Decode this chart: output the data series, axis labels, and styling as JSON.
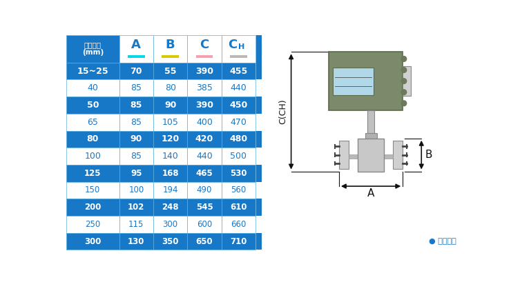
{
  "header_row_0": "仪表口径\n(mm)",
  "header_labels": [
    "A",
    "B",
    "C",
    "CH"
  ],
  "underline_colors": [
    "#00d8e8",
    "#d8c800",
    "#f4a0b0",
    "#b8b8b8"
  ],
  "rows": [
    [
      "15~25",
      "70",
      "55",
      "390",
      "455"
    ],
    [
      "40",
      "85",
      "80",
      "385",
      "440"
    ],
    [
      "50",
      "85",
      "90",
      "390",
      "450"
    ],
    [
      "65",
      "85",
      "105",
      "400",
      "470"
    ],
    [
      "80",
      "90",
      "120",
      "420",
      "480"
    ],
    [
      "100",
      "85",
      "140",
      "440",
      "500"
    ],
    [
      "125",
      "95",
      "168",
      "465",
      "530"
    ],
    [
      "150",
      "100",
      "194",
      "490",
      "560"
    ],
    [
      "200",
      "102",
      "248",
      "545",
      "610"
    ],
    [
      "250",
      "115",
      "300",
      "600",
      "660"
    ],
    [
      "300",
      "130",
      "350",
      "650",
      "710"
    ]
  ],
  "row_bg_blue": "#1878c8",
  "row_bg_white": "#ffffff",
  "text_white": "#ffffff",
  "text_blue": "#1878c8",
  "header_text_color": "#1878c8",
  "note_text": "● 常规仪表",
  "dim_c": "C(CH)",
  "dim_a": "A",
  "dim_b": "B",
  "bg_color": "#ffffff"
}
